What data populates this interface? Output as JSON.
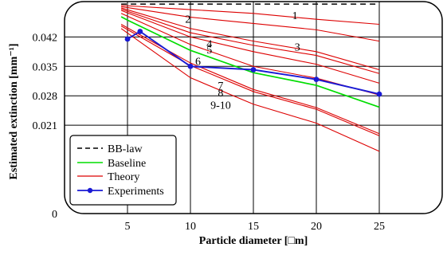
{
  "chart_data": {
    "type": "line",
    "xlabel": "Particle diameter [□m]",
    "ylabel": "Estimated extinction [mm⁻¹]",
    "xlim": [
      0,
      30
    ],
    "ylim": [
      0,
      0.0504
    ],
    "x_ticks": [
      "5",
      "10",
      "15",
      "20",
      "25"
    ],
    "y_ticks": [
      "0",
      "0.021",
      "0.028",
      "0.035",
      "0.042"
    ],
    "grid": true,
    "legend_position": "bottom-left",
    "legend": [
      {
        "label": "BB-law",
        "style": "dashed",
        "color": "#000000"
      },
      {
        "label": "Baseline",
        "style": "solid",
        "color": "#00dd00"
      },
      {
        "label": "Theory",
        "style": "solid",
        "color": "#dd0000"
      },
      {
        "label": "Experiments",
        "style": "solid-dot",
        "color": "#1a1ad4"
      }
    ],
    "series": [
      {
        "name": "BB-law",
        "x": [
          4.5,
          25
        ],
        "y": [
          0.0498,
          0.0498
        ]
      },
      {
        "name": "Baseline",
        "x": [
          4.5,
          5,
          10,
          15,
          20,
          25
        ],
        "y": [
          0.0468,
          0.046,
          0.0388,
          0.0335,
          0.0305,
          0.0253
        ]
      },
      {
        "name": "Experiments",
        "x": [
          5,
          6,
          10,
          15,
          20,
          25
        ],
        "y": [
          0.0415,
          0.0433,
          0.035,
          0.0342,
          0.0319,
          0.0284
        ]
      }
    ],
    "theory_curves": [
      {
        "label": "1",
        "x": [
          4.5,
          10,
          15,
          20,
          25
        ],
        "y": [
          0.0495,
          0.0485,
          0.0476,
          0.0462,
          0.045
        ]
      },
      {
        "label": "2",
        "x": [
          4.5,
          10,
          15,
          20,
          25
        ],
        "y": [
          0.0492,
          0.0467,
          0.0452,
          0.0437,
          0.041
        ]
      },
      {
        "label": "3",
        "x": [
          4.5,
          10,
          15,
          20,
          25
        ],
        "y": [
          0.0489,
          0.044,
          0.041,
          0.0385,
          0.0342
        ]
      },
      {
        "label": "4",
        "x": [
          4.5,
          10,
          15,
          20,
          25
        ],
        "y": [
          0.0486,
          0.043,
          0.04,
          0.0376,
          0.0333
        ]
      },
      {
        "label": "5",
        "x": [
          4.5,
          10,
          15,
          20,
          25
        ],
        "y": [
          0.0483,
          0.042,
          0.0385,
          0.0355,
          0.031
        ]
      },
      {
        "label": "6",
        "x": [
          4.5,
          10,
          15,
          20,
          25
        ],
        "y": [
          0.0476,
          0.0402,
          0.035,
          0.0322,
          0.0282
        ]
      },
      {
        "label": "7",
        "x": [
          4.5,
          10,
          15,
          20,
          25
        ],
        "y": [
          0.045,
          0.0358,
          0.0295,
          0.0252,
          0.019
        ]
      },
      {
        "label": "8",
        "x": [
          4.5,
          10,
          15,
          20,
          25
        ],
        "y": [
          0.0446,
          0.0352,
          0.029,
          0.0248,
          0.0185
        ]
      },
      {
        "label": "9-10",
        "x": [
          4.5,
          10,
          15,
          20,
          25
        ],
        "y": [
          0.044,
          0.0323,
          0.026,
          0.0215,
          0.0148
        ]
      }
    ],
    "label_positions": [
      {
        "text": "1",
        "x": 18.3,
        "y": 0.0472
      },
      {
        "text": "2",
        "x": 9.8,
        "y": 0.0463
      },
      {
        "text": "3",
        "x": 18.5,
        "y": 0.0397
      },
      {
        "text": "4",
        "x": 11.5,
        "y": 0.0405
      },
      {
        "text": "5",
        "x": 11.5,
        "y": 0.039
      },
      {
        "text": "6",
        "x": 10.6,
        "y": 0.0363
      },
      {
        "text": "7",
        "x": 12.4,
        "y": 0.0305
      },
      {
        "text": "8",
        "x": 12.4,
        "y": 0.0288
      },
      {
        "text": "9-10",
        "x": 12.4,
        "y": 0.0259
      }
    ]
  }
}
